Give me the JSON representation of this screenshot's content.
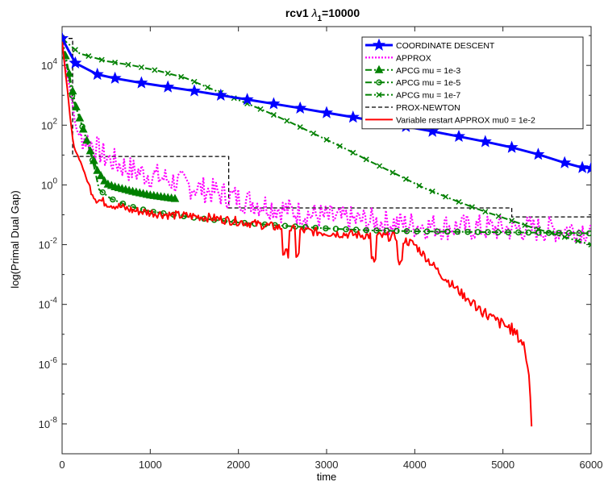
{
  "chart_data": {
    "type": "line",
    "title": {
      "prefix": "rcv1  ",
      "lambda": "λ",
      "sub": "1",
      "suffix": "=10000"
    },
    "xlabel": "time",
    "ylabel": "log(Primal Dual Gap)",
    "yscale": "log",
    "xlim": [
      0,
      6000
    ],
    "ylim_exp": [
      -9,
      5.3
    ],
    "x_ticks": [
      0,
      1000,
      2000,
      3000,
      4000,
      5000,
      6000
    ],
    "x_tick_labels": [
      "0",
      "1000",
      "2000",
      "3000",
      "4000",
      "5000",
      "6000"
    ],
    "y_ticks_exp": [
      -8,
      -6,
      -4,
      -2,
      0,
      2,
      4
    ],
    "y_tick_base": "10",
    "y_tick_exp_labels": [
      "-8",
      "-6",
      "-4",
      "-2",
      "0",
      "2",
      "4"
    ],
    "legend_position": "top-right",
    "series": [
      {
        "name": "COORDINATE DESCENT",
        "color": "#0000ff",
        "marker": "star",
        "points": [
          [
            0,
            80000
          ],
          [
            150,
            12000
          ],
          [
            400,
            5000
          ],
          [
            600,
            3700
          ],
          [
            900,
            2600
          ],
          [
            1200,
            1900
          ],
          [
            1500,
            1400
          ],
          [
            1800,
            1000
          ],
          [
            2100,
            720
          ],
          [
            2400,
            520
          ],
          [
            2700,
            370
          ],
          [
            3000,
            260
          ],
          [
            3300,
            185
          ],
          [
            3600,
            130
          ],
          [
            3900,
            90
          ],
          [
            4200,
            62
          ],
          [
            4500,
            42
          ],
          [
            4800,
            28
          ],
          [
            5100,
            18
          ],
          [
            5400,
            10.5
          ],
          [
            5700,
            5.5
          ],
          [
            5900,
            3.8
          ],
          [
            6000,
            3.6
          ]
        ]
      },
      {
        "name": "APPROX",
        "color": "#ff00ff",
        "style": "dotted-oscillating",
        "points": [
          [
            0,
            80000
          ],
          [
            50,
            6000
          ],
          [
            100,
            1200
          ],
          [
            150,
            100
          ],
          [
            200,
            40
          ],
          [
            300,
            30
          ],
          [
            500,
            8
          ],
          [
            800,
            3
          ],
          [
            1200,
            1.5
          ],
          [
            1600,
            0.7
          ],
          [
            2000,
            0.35
          ],
          [
            2500,
            0.15
          ],
          [
            3000,
            0.08
          ],
          [
            3500,
            0.06
          ],
          [
            4000,
            0.045
          ],
          [
            4500,
            0.038
          ],
          [
            5000,
            0.035
          ],
          [
            5500,
            0.033
          ],
          [
            6000,
            0.032
          ]
        ]
      },
      {
        "name": "APCG mu = 1e-3",
        "color": "#008000",
        "marker": "triangle",
        "points": [
          [
            0,
            80000
          ],
          [
            150,
            500
          ],
          [
            300,
            20
          ],
          [
            400,
            3
          ],
          [
            500,
            1.1
          ],
          [
            600,
            0.85
          ],
          [
            800,
            0.6
          ],
          [
            1000,
            0.45
          ],
          [
            1200,
            0.37
          ],
          [
            1290,
            0.34
          ]
        ]
      },
      {
        "name": "APCG mu = 1e-5",
        "color": "#008000",
        "marker": "circle",
        "points": [
          [
            0,
            80000
          ],
          [
            120,
            800
          ],
          [
            250,
            60
          ],
          [
            350,
            6
          ],
          [
            420,
            0.7
          ],
          [
            550,
            0.35
          ],
          [
            750,
            0.2
          ],
          [
            1000,
            0.13
          ],
          [
            1500,
            0.08
          ],
          [
            2000,
            0.055
          ],
          [
            2500,
            0.043
          ],
          [
            3000,
            0.035
          ],
          [
            3500,
            0.03
          ],
          [
            4000,
            0.028
          ],
          [
            4500,
            0.027
          ],
          [
            5000,
            0.026
          ],
          [
            5500,
            0.025
          ],
          [
            6000,
            0.024
          ]
        ]
      },
      {
        "name": "APCG mu = 1e-7",
        "color": "#008000",
        "marker": "x",
        "points": [
          [
            0,
            80000
          ],
          [
            200,
            25000
          ],
          [
            500,
            14000
          ],
          [
            800,
            10000
          ],
          [
            1100,
            6500
          ],
          [
            1400,
            3800
          ],
          [
            1700,
            1600
          ],
          [
            2000,
            700
          ],
          [
            2300,
            300
          ],
          [
            2600,
            120
          ],
          [
            2900,
            45
          ],
          [
            3200,
            17
          ],
          [
            3500,
            6
          ],
          [
            3800,
            2.2
          ],
          [
            4100,
            0.8
          ],
          [
            4400,
            0.35
          ],
          [
            4700,
            0.16
          ],
          [
            5000,
            0.08
          ],
          [
            5300,
            0.04
          ],
          [
            5600,
            0.022
          ],
          [
            5900,
            0.012
          ],
          [
            6000,
            0.01
          ]
        ]
      },
      {
        "name": "PROX-NEWTON",
        "color": "#000000",
        "style": "dashed-step",
        "points": [
          [
            0,
            80000
          ],
          [
            120,
            80000
          ],
          [
            120,
            9
          ],
          [
            1890,
            9
          ],
          [
            1890,
            0.17
          ],
          [
            5100,
            0.17
          ],
          [
            5100,
            0.085
          ],
          [
            6000,
            0.085
          ]
        ]
      },
      {
        "name": "Variable restart APPROX mu0 = 1e-2",
        "color": "#ff0000",
        "points": [
          [
            0,
            60000
          ],
          [
            50,
            3000
          ],
          [
            90,
            200
          ],
          [
            130,
            20
          ],
          [
            220,
            5
          ],
          [
            300,
            1
          ],
          [
            380,
            0.35
          ],
          [
            500,
            0.25
          ],
          [
            800,
            0.14
          ],
          [
            1200,
            0.1
          ],
          [
            1600,
            0.085
          ],
          [
            2000,
            0.06
          ],
          [
            2400,
            0.04
          ],
          [
            2700,
            0.03
          ],
          [
            3000,
            0.025
          ],
          [
            3500,
            0.02
          ],
          [
            3800,
            0.018
          ],
          [
            4000,
            0.01
          ],
          [
            4300,
            0.001
          ],
          [
            4600,
            0.00015
          ],
          [
            4900,
            3e-05
          ],
          [
            5100,
            1.5e-05
          ],
          [
            5230,
            5e-06
          ],
          [
            5260,
            2e-06
          ],
          [
            5300,
            3e-07
          ],
          [
            5330,
            5e-09
          ]
        ]
      }
    ]
  }
}
